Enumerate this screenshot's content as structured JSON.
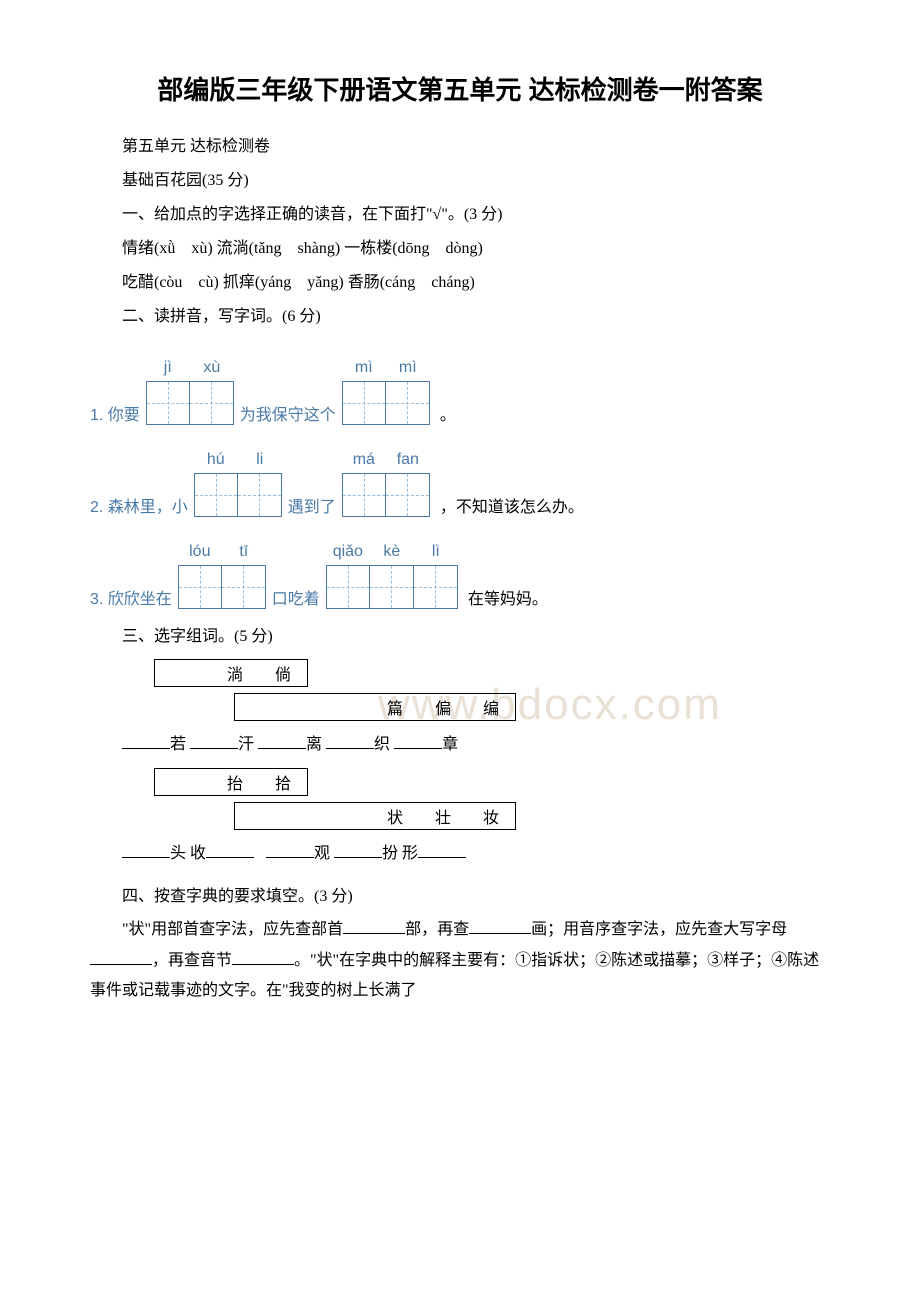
{
  "title": "部编版三年级下册语文第五单元 达标检测卷一附答案",
  "subtitle": "第五单元 达标检测卷",
  "section_base": "基础百花园(35 分)",
  "q1": {
    "header": "一、给加点的字选择正确的读音，在下面打\"√\"。(3 分)",
    "line1": "情绪(xǜ　xù)  流淌(tǎng　shàng)  一栋楼(dōng　dòng)",
    "line2": "吃醋(còu　cù)  抓痒(yáng　yǎng)  香肠(cáng　cháng)"
  },
  "q2": {
    "header": "二、读拼音，写字词。(6 分)",
    "items": [
      {
        "prefix": "1. 你要",
        "group1": [
          [
            "jì",
            ""
          ],
          [
            "xù",
            ""
          ]
        ],
        "mid": "为我保守这个",
        "group2": [
          [
            "mì",
            ""
          ],
          [
            "mì",
            ""
          ]
        ],
        "suffix": "。"
      },
      {
        "prefix": "2. 森林里，小",
        "group1": [
          [
            "hú",
            ""
          ],
          [
            "li",
            ""
          ]
        ],
        "mid": "遇到了",
        "group2": [
          [
            "má",
            ""
          ],
          [
            "fan",
            ""
          ]
        ],
        "suffix": "，不知道该怎么办。"
      },
      {
        "prefix": "3. 欣欣坐在",
        "group1": [
          [
            "lóu",
            ""
          ],
          [
            "tī",
            ""
          ]
        ],
        "mid": "口吃着",
        "group2": [
          [
            "qiǎo",
            ""
          ],
          [
            "kè",
            ""
          ],
          [
            "lì",
            ""
          ]
        ],
        "suffix": "在等妈妈。"
      }
    ]
  },
  "q3": {
    "header": "三、选字组词。(5 分)",
    "choice1": "淌　倘",
    "choice2": "篇　偏　编",
    "blanks1": [
      "若",
      "汗",
      "离",
      "织",
      "章"
    ],
    "choice3": "抬　拾",
    "choice4": "状　壮　妆",
    "blanks2_parts": {
      "a": "头 收",
      "b": "观",
      "c": "扮 形"
    }
  },
  "q4": {
    "header": "四、按查字典的要求填空。(3 分)",
    "text": "\"状\"用部首查字法，应先查部首________部，再查________画；用音序查字法，应先查大写字母________，再查音节________。\"状\"在字典中的解释主要有：①指诉状；②陈述或描摹；③样子；④陈述事件或记载事迹的文字。在\"我变的树上长满了"
  },
  "watermark": "www.bdocx.com",
  "colors": {
    "blue": "#4a7aa7",
    "dash": "#9cbdd8",
    "wm": "#e9e1d6"
  }
}
